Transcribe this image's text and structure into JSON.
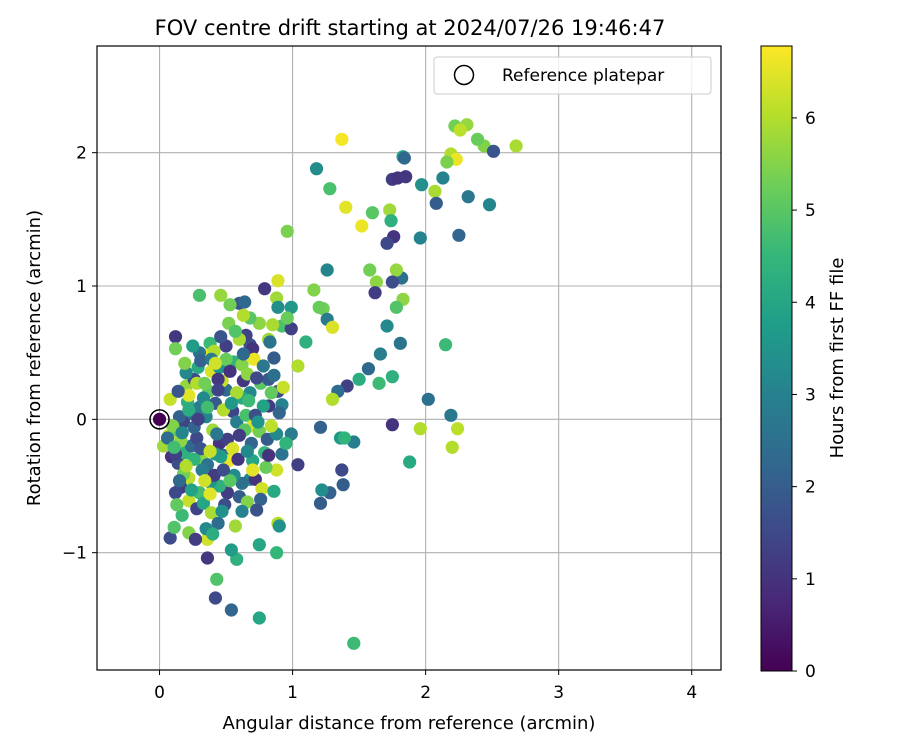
{
  "chart_data": {
    "type": "scatter",
    "title": "FOV centre drift starting at 2024/07/26 19:46:47",
    "xlabel": "Angular distance from reference (arcmin)",
    "ylabel": "Rotation from reference (arcmin)",
    "xlim": [
      -0.47,
      4.22
    ],
    "ylim": [
      -1.88,
      2.8
    ],
    "xticks": [
      0,
      1,
      2,
      3,
      4
    ],
    "yticks": [
      -1,
      0,
      1,
      2
    ],
    "xtick_labels": [
      "0",
      "1",
      "2",
      "3",
      "4"
    ],
    "ytick_labels": [
      "−1",
      "0",
      "1",
      "2"
    ],
    "grid": true,
    "legend": {
      "position": "top-right",
      "label": "Reference platepar"
    },
    "reference_point": {
      "x": 0,
      "y": 0
    },
    "colorbar": {
      "label": "Hours from first FF file",
      "range": [
        0,
        6.78
      ],
      "ticks": [
        0,
        1,
        2,
        3,
        4,
        5,
        6
      ],
      "tick_labels": [
        "0",
        "1",
        "2",
        "3",
        "4",
        "5",
        "6"
      ],
      "colormap": "viridis",
      "colors": [
        "#440154",
        "#482878",
        "#3e4989",
        "#31688e",
        "#26828e",
        "#1f9e89",
        "#35b779",
        "#6ece58",
        "#b5de2b",
        "#fde725"
      ]
    },
    "points": [
      [
        2.68,
        2.05,
        5.9
      ],
      [
        2.44,
        2.05,
        5.5
      ],
      [
        2.39,
        2.1,
        5.2
      ],
      [
        2.31,
        2.21,
        5.7
      ],
      [
        2.22,
        2.2,
        5.3
      ],
      [
        2.26,
        2.17,
        6.1
      ],
      [
        2.19,
        1.99,
        6.0
      ],
      [
        2.23,
        1.95,
        6.6
      ],
      [
        2.13,
        1.81,
        3.0
      ],
      [
        2.16,
        1.93,
        5.4
      ],
      [
        2.51,
        2.01,
        1.8
      ],
      [
        2.32,
        1.67,
        2.7
      ],
      [
        2.48,
        1.61,
        3.1
      ],
      [
        2.25,
        1.38,
        2.2
      ],
      [
        2.07,
        1.71,
        5.9
      ],
      [
        2.08,
        1.62,
        2.0
      ],
      [
        1.97,
        1.76,
        3.4
      ],
      [
        1.83,
        1.97,
        4.0
      ],
      [
        1.84,
        1.96,
        2.3
      ],
      [
        1.75,
        1.8,
        1.2
      ],
      [
        1.79,
        1.81,
        1.0
      ],
      [
        1.85,
        1.82,
        1.1
      ],
      [
        1.73,
        1.57,
        5.8
      ],
      [
        1.74,
        1.49,
        4.3
      ],
      [
        1.6,
        1.55,
        5.0
      ],
      [
        1.52,
        1.45,
        6.6
      ],
      [
        1.37,
        2.1,
        6.7
      ],
      [
        1.4,
        1.59,
        6.5
      ],
      [
        1.18,
        1.88,
        3.3
      ],
      [
        1.28,
        1.73,
        4.8
      ],
      [
        1.96,
        1.36,
        3.0
      ],
      [
        1.76,
        1.37,
        1.0
      ],
      [
        1.71,
        1.32,
        1.5
      ],
      [
        1.82,
        1.06,
        2.5
      ],
      [
        1.78,
        1.12,
        5.7
      ],
      [
        1.58,
        1.12,
        5.3
      ],
      [
        1.63,
        1.03,
        5.6
      ],
      [
        1.62,
        0.95,
        1.2
      ],
      [
        1.75,
        1.03,
        1.6
      ],
      [
        1.83,
        0.9,
        5.6
      ],
      [
        1.78,
        0.84,
        4.9
      ],
      [
        1.71,
        0.7,
        3.2
      ],
      [
        1.81,
        0.57,
        2.6
      ],
      [
        2.15,
        0.56,
        4.6
      ],
      [
        1.66,
        0.49,
        2.9
      ],
      [
        1.65,
        0.27,
        4.6
      ],
      [
        1.75,
        0.32,
        4.3
      ],
      [
        1.57,
        0.38,
        2.3
      ],
      [
        1.5,
        0.3,
        4.2
      ],
      [
        1.41,
        0.25,
        1.3
      ],
      [
        1.34,
        0.21,
        2.4
      ],
      [
        1.3,
        0.15,
        6.0
      ],
      [
        1.26,
        1.12,
        3.1
      ],
      [
        1.23,
        0.83,
        5.3
      ],
      [
        1.26,
        0.75,
        2.8
      ],
      [
        1.3,
        0.69,
        6.4
      ],
      [
        1.16,
        0.97,
        5.5
      ],
      [
        1.2,
        0.84,
        5.2
      ],
      [
        1.1,
        0.58,
        4.3
      ],
      [
        1.04,
        0.4,
        6.0
      ],
      [
        2.02,
        0.15,
        2.5
      ],
      [
        2.19,
        0.03,
        2.7
      ],
      [
        2.24,
        -0.07,
        6.1
      ],
      [
        1.96,
        -0.07,
        6.0
      ],
      [
        1.75,
        -0.04,
        1.0
      ],
      [
        2.2,
        -0.21,
        6.0
      ],
      [
        1.88,
        -0.32,
        4.1
      ],
      [
        1.46,
        -0.17,
        2.9
      ],
      [
        1.36,
        -0.14,
        3.6
      ],
      [
        1.39,
        -0.14,
        4.4
      ],
      [
        1.21,
        -0.06,
        2.1
      ],
      [
        1.37,
        -0.38,
        1.5
      ],
      [
        1.38,
        -0.49,
        2.0
      ],
      [
        1.28,
        -0.55,
        2.1
      ],
      [
        1.22,
        -0.53,
        3.3
      ],
      [
        1.21,
        -0.63,
        2.0
      ],
      [
        1.46,
        -1.68,
        4.6
      ],
      [
        0.89,
        -0.78,
        6.0
      ],
      [
        0.9,
        -0.8,
        3.4
      ],
      [
        0.88,
        -1.0,
        4.5
      ],
      [
        0.75,
        -0.94,
        4.0
      ],
      [
        0.58,
        -1.05,
        4.3
      ],
      [
        0.54,
        -0.98,
        3.7
      ],
      [
        0.43,
        -1.2,
        4.9
      ],
      [
        0.42,
        -1.34,
        1.5
      ],
      [
        0.54,
        -1.43,
        2.2
      ],
      [
        0.75,
        -1.49,
        4.0
      ],
      [
        0.36,
        -1.04,
        1.1
      ],
      [
        0.08,
        -0.89,
        1.6
      ],
      [
        0.11,
        -0.81,
        4.9
      ],
      [
        0.22,
        -0.85,
        5.5
      ],
      [
        0.36,
        -0.9,
        6.3
      ],
      [
        0.96,
        1.41,
        5.4
      ],
      [
        0.89,
        1.04,
        6.4
      ],
      [
        0.88,
        0.91,
        5.8
      ],
      [
        0.99,
        0.84,
        3.6
      ],
      [
        0.79,
        0.98,
        1.1
      ],
      [
        0.6,
        0.87,
        1.8
      ],
      [
        0.64,
        0.88,
        2.3
      ],
      [
        0.53,
        0.86,
        5.3
      ],
      [
        0.46,
        0.93,
        5.7
      ],
      [
        0.3,
        0.93,
        4.8
      ],
      [
        0.89,
        0.84,
        3.3
      ],
      [
        0.92,
        0.7,
        4.8
      ],
      [
        0.85,
        0.71,
        5.9
      ],
      [
        0.75,
        0.72,
        5.6
      ],
      [
        0.68,
        0.76,
        5.0
      ],
      [
        0.63,
        0.78,
        6.0
      ],
      [
        0.99,
        0.68,
        1.3
      ],
      [
        0.96,
        0.76,
        5.2
      ],
      [
        0.82,
        0.6,
        5.8
      ],
      [
        0.83,
        0.58,
        2.6
      ],
      [
        0.68,
        0.56,
        1.7
      ],
      [
        0.7,
        0.53,
        1.0
      ],
      [
        0.65,
        0.63,
        1.4
      ],
      [
        0.6,
        0.6,
        5.9
      ],
      [
        0.5,
        0.55,
        1.3
      ],
      [
        0.38,
        0.57,
        4.6
      ],
      [
        0.35,
        0.48,
        6.6
      ],
      [
        0.3,
        0.5,
        2.6
      ],
      [
        0.12,
        0.62,
        1.1
      ],
      [
        0.12,
        0.53,
        5.3
      ],
      [
        0.08,
        0.15,
        6.2
      ],
      [
        0.2,
        0.25,
        5.7
      ],
      [
        0.26,
        0.3,
        1.5
      ],
      [
        0.29,
        0.39,
        4.1
      ],
      [
        0.39,
        0.36,
        6.4
      ],
      [
        0.45,
        0.39,
        3.5
      ],
      [
        0.56,
        0.43,
        4.4
      ],
      [
        0.62,
        0.41,
        5.5
      ],
      [
        0.71,
        0.45,
        6.6
      ],
      [
        0.76,
        0.27,
        5.0
      ],
      [
        0.82,
        0.3,
        1.9
      ],
      [
        0.86,
        0.33,
        2.5
      ],
      [
        0.89,
        0.21,
        1.6
      ],
      [
        0.92,
        0.11,
        3.0
      ],
      [
        0.82,
        0.1,
        1.2
      ],
      [
        0.68,
        0.2,
        3.2
      ],
      [
        0.63,
        0.29,
        1.1
      ],
      [
        0.62,
        0.16,
        4.1
      ],
      [
        0.55,
        0.06,
        1.4
      ],
      [
        0.58,
        -0.02,
        2.9
      ],
      [
        0.65,
        0.03,
        4.8
      ],
      [
        0.7,
        -0.05,
        6.4
      ],
      [
        0.75,
        -0.09,
        5.3
      ],
      [
        0.81,
        -0.15,
        2.0
      ],
      [
        0.88,
        -0.11,
        3.2
      ],
      [
        0.99,
        -0.11,
        2.8
      ],
      [
        1.04,
        -0.34,
        1.3
      ],
      [
        0.92,
        -0.26,
        2.6
      ],
      [
        0.88,
        -0.38,
        6.3
      ],
      [
        0.8,
        -0.36,
        5.2
      ],
      [
        0.7,
        -0.31,
        4.0
      ],
      [
        0.68,
        -0.45,
        3.1
      ],
      [
        0.62,
        -0.48,
        2.5
      ],
      [
        0.51,
        -0.55,
        1.2
      ],
      [
        0.45,
        -0.5,
        4.3
      ],
      [
        0.38,
        -0.47,
        3.5
      ],
      [
        0.3,
        -0.55,
        4.7
      ],
      [
        0.22,
        -0.44,
        6.1
      ],
      [
        0.16,
        -0.51,
        1.2
      ],
      [
        0.12,
        -0.55,
        1.5
      ],
      [
        0.03,
        -0.2,
        5.8
      ],
      [
        0.07,
        -0.12,
        6.3
      ],
      [
        0.13,
        -0.08,
        5.0
      ],
      [
        0.18,
        -0.02,
        1.4
      ],
      [
        0.21,
        0.13,
        4.3
      ],
      [
        0.22,
        0.18,
        6.5
      ],
      [
        0.25,
        0.04,
        2.5
      ],
      [
        0.3,
        0.09,
        2.8
      ],
      [
        0.35,
        0.02,
        3.1
      ],
      [
        0.4,
        -0.08,
        5.8
      ],
      [
        0.45,
        -0.18,
        1.0
      ],
      [
        0.48,
        -0.27,
        2.1
      ],
      [
        0.52,
        -0.31,
        6.6
      ],
      [
        0.56,
        -0.42,
        3.3
      ],
      [
        0.6,
        -0.58,
        2.0
      ],
      [
        0.66,
        -0.62,
        5.5
      ],
      [
        0.72,
        -0.45,
        1.0
      ],
      [
        0.77,
        -0.52,
        6.3
      ],
      [
        0.86,
        -0.54,
        4.1
      ],
      [
        0.93,
        0.24,
        6.2
      ],
      [
        0.86,
        0.46,
        2.0
      ],
      [
        0.78,
        0.1,
        3.9
      ],
      [
        0.72,
        0.03,
        1.7
      ],
      [
        0.66,
        0.34,
        5.6
      ],
      [
        0.5,
        0.22,
        2.4
      ],
      [
        0.47,
        0.29,
        6.2
      ],
      [
        0.42,
        0.12,
        1.9
      ],
      [
        0.37,
        0.21,
        5.1
      ],
      [
        0.33,
        0.16,
        3.2
      ],
      [
        0.28,
        0.27,
        6.0
      ],
      [
        0.2,
        0.35,
        3.2
      ],
      [
        0.15,
        0.02,
        2.1
      ],
      [
        0.1,
        -0.05,
        5.5
      ],
      [
        0.09,
        -0.28,
        1.0
      ],
      [
        0.14,
        -0.33,
        1.6
      ],
      [
        0.19,
        -0.25,
        4.3
      ],
      [
        0.24,
        -0.2,
        2.3
      ],
      [
        0.28,
        -0.14,
        1.5
      ],
      [
        0.32,
        -0.31,
        5.6
      ],
      [
        0.36,
        -0.34,
        2.6
      ],
      [
        0.41,
        -0.42,
        1.2
      ],
      [
        0.46,
        -0.28,
        3.8
      ],
      [
        0.51,
        -0.15,
        1.3
      ],
      [
        0.55,
        -0.22,
        6.4
      ],
      [
        0.59,
        -0.3,
        1.1
      ],
      [
        0.64,
        -0.08,
        5.0
      ],
      [
        0.69,
        -0.18,
        2.2
      ],
      [
        0.74,
        -0.02,
        3.5
      ],
      [
        0.79,
        -0.25,
        4.5
      ],
      [
        0.84,
        -0.05,
        6.1
      ],
      [
        0.18,
        -0.41,
        5.3
      ],
      [
        0.22,
        -0.61,
        6.2
      ],
      [
        0.28,
        -0.67,
        1.4
      ],
      [
        0.33,
        -0.63,
        4.0
      ],
      [
        0.39,
        -0.7,
        5.9
      ],
      [
        0.44,
        -0.78,
        2.4
      ],
      [
        0.49,
        -0.64,
        1.6
      ],
      [
        0.57,
        -0.8,
        5.8
      ],
      [
        0.62,
        -0.69,
        3.0
      ],
      [
        0.35,
        -0.82,
        3.2
      ],
      [
        0.4,
        -0.86,
        4.2
      ],
      [
        0.27,
        -0.9,
        1.2
      ],
      [
        0.17,
        -0.72,
        4.6
      ],
      [
        0.13,
        -0.64,
        5.1
      ],
      [
        0.25,
        0.55,
        3.7
      ],
      [
        0.31,
        0.44,
        2.1
      ],
      [
        0.41,
        0.51,
        6.0
      ],
      [
        0.46,
        0.62,
        1.8
      ],
      [
        0.52,
        0.72,
        5.4
      ],
      [
        0.57,
        0.66,
        4.9
      ],
      [
        0.5,
        0.45,
        5.2
      ],
      [
        0.44,
        0.3,
        1.1
      ],
      [
        0.36,
        0.09,
        4.7
      ],
      [
        0.26,
        -0.06,
        2.2
      ],
      [
        0.22,
        0.07,
        4.2
      ],
      [
        0.31,
        -0.22,
        1.8
      ],
      [
        0.43,
        -0.11,
        2.7
      ],
      [
        0.48,
        0.07,
        6.0
      ],
      [
        0.53,
        0.36,
        1.0
      ],
      [
        0.58,
        0.2,
        5.9
      ],
      [
        0.63,
        0.49,
        2.3
      ],
      [
        0.67,
        0.14,
        4.6
      ],
      [
        0.73,
        0.31,
        1.5
      ],
      [
        0.78,
        0.4,
        2.7
      ],
      [
        0.84,
        0.2,
        5.1
      ],
      [
        0.9,
        0.05,
        2.2
      ],
      [
        0.95,
        -0.18,
        4.4
      ],
      [
        0.47,
        -0.69,
        3.4
      ],
      [
        0.38,
        -0.56,
        6.5
      ],
      [
        0.32,
        -0.38,
        2.9
      ],
      [
        0.26,
        -0.3,
        4.4
      ],
      [
        0.16,
        -0.16,
        5.6
      ],
      [
        0.12,
        -0.26,
        1.3
      ],
      [
        0.06,
        -0.14,
        2.4
      ],
      [
        0.14,
        0.21,
        1.8
      ],
      [
        0.19,
        0.42,
        5.5
      ],
      [
        0.44,
        0.22,
        1.4
      ],
      [
        0.54,
        0.12,
        3.6
      ],
      [
        0.6,
        -0.12,
        1.2
      ],
      [
        0.7,
        -0.38,
        6.5
      ],
      [
        0.76,
        -0.6,
        2.1
      ],
      [
        0.82,
        -0.27,
        1.0
      ],
      [
        0.42,
        -0.26,
        3.6
      ],
      [
        0.38,
        -0.24,
        6.2
      ],
      [
        0.29,
        0.0,
        1.3
      ],
      [
        0.34,
        0.27,
        5.3
      ],
      [
        0.39,
        0.45,
        2.8
      ],
      [
        0.42,
        0.42,
        6.3
      ],
      [
        0.24,
        -0.53,
        3.9
      ],
      [
        0.2,
        -0.35,
        6.0
      ],
      [
        0.15,
        -0.46,
        2.3
      ],
      [
        0.11,
        -0.21,
        4.7
      ],
      [
        0.17,
        -0.1,
        3.1
      ],
      [
        0.34,
        -0.46,
        6.3
      ],
      [
        0.48,
        -0.38,
        1.6
      ],
      [
        0.53,
        -0.46,
        5.0
      ],
      [
        0.66,
        -0.24,
        3.2
      ],
      [
        0.73,
        -0.68,
        1.7
      ]
    ]
  }
}
